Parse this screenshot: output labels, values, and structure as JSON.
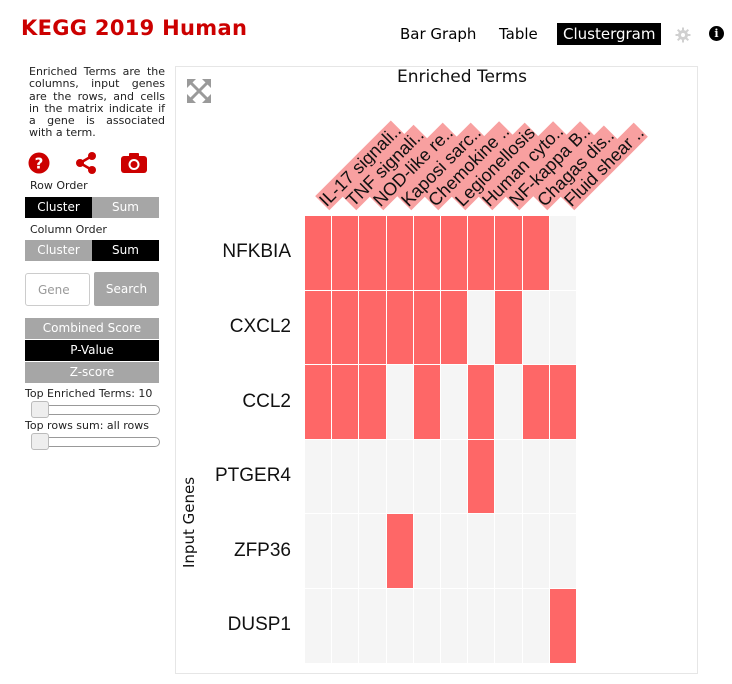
{
  "header": {
    "title": "KEGG 2019 Human",
    "nav": [
      {
        "label": "Bar Graph",
        "active": false
      },
      {
        "label": "Table",
        "active": false
      },
      {
        "label": "Clustergram",
        "active": true
      }
    ],
    "icons": [
      "gear-icon",
      "info-icon"
    ],
    "info_glyph": "i"
  },
  "sidebar": {
    "description": "Enriched Terms are the columns, input genes are the rows, and cells in the matrix indicate if a gene is associated with a term.",
    "tool_icons": [
      "help-icon",
      "share-icon",
      "camera-icon"
    ],
    "row_order": {
      "label": "Row Order",
      "options": [
        "Cluster",
        "Sum"
      ],
      "selected": "Cluster"
    },
    "column_order": {
      "label": "Column Order",
      "options": [
        "Cluster",
        "Sum"
      ],
      "selected": "Sum"
    },
    "gene_placeholder": "Gene",
    "search_label": "Search",
    "score_options": [
      "Combined Score",
      "P-Value",
      "Z-score"
    ],
    "score_selected": "P-Value",
    "top_terms_label": "Top Enriched Terms: 10",
    "top_rows_label": "Top rows sum: all rows"
  },
  "colors": {
    "accent": "#cc0000",
    "cell_on": "#fe6767",
    "cell_off": "#f5f5f5",
    "label_highlight": "#f8a0a0"
  },
  "chart_data": {
    "type": "heatmap",
    "title": "Enriched Terms",
    "ylabel": "Input Genes",
    "columns": [
      "IL-17 signali..",
      "TNF signali..",
      "NOD-like re..",
      "Kaposi sarc..",
      "Chemokine ..",
      "Legionellosis",
      "Human cyto..",
      "NF-kappa B..",
      "Chagas dis..",
      "Fluid shear .."
    ],
    "rows": [
      "NFKBIA",
      "CXCL2",
      "CCL2",
      "PTGER4",
      "ZFP36",
      "DUSP1"
    ],
    "matrix": [
      [
        1,
        1,
        1,
        1,
        1,
        1,
        1,
        1,
        1,
        0
      ],
      [
        1,
        1,
        1,
        1,
        1,
        1,
        0,
        1,
        0,
        0
      ],
      [
        1,
        1,
        1,
        0,
        1,
        0,
        1,
        0,
        1,
        1
      ],
      [
        0,
        0,
        0,
        0,
        0,
        0,
        1,
        0,
        0,
        0
      ],
      [
        0,
        0,
        0,
        1,
        0,
        0,
        0,
        0,
        0,
        0
      ],
      [
        0,
        0,
        0,
        0,
        0,
        0,
        0,
        0,
        0,
        1
      ]
    ],
    "highlighted_columns": [
      0,
      1,
      2,
      3,
      4,
      5,
      6,
      7,
      8,
      9
    ]
  }
}
